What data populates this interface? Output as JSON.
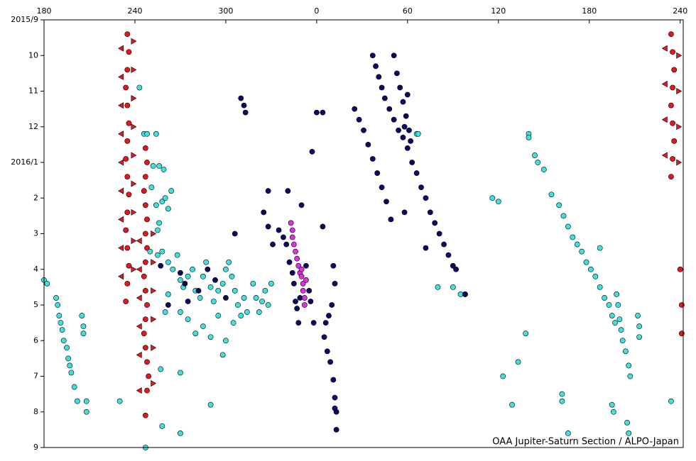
{
  "chart_data": {
    "type": "scatter",
    "annotation": "OAA Jupiter-Saturn Section / ALPO-Japan",
    "xlim": [
      180,
      602
    ],
    "ylim": [
      12,
      0
    ],
    "xticks": [
      180,
      240,
      300,
      {
        "value": 360,
        "label": "0"
      },
      {
        "value": 420,
        "label": "60"
      },
      {
        "value": 480,
        "label": "120"
      },
      {
        "value": 540,
        "label": "180"
      },
      {
        "value": 600,
        "label": "240"
      }
    ],
    "yticks": [
      {
        "value": 0,
        "label": "2015/9"
      },
      {
        "value": 1,
        "label": "10"
      },
      {
        "value": 2,
        "label": "11"
      },
      {
        "value": 3,
        "label": "12"
      },
      {
        "value": 4,
        "label": "2016/1"
      },
      {
        "value": 5,
        "label": "2"
      },
      {
        "value": 6,
        "label": "3"
      },
      {
        "value": 7,
        "label": "4"
      },
      {
        "value": 8,
        "label": "5"
      },
      {
        "value": 9,
        "label": "6"
      },
      {
        "value": 10,
        "label": "7"
      },
      {
        "value": 11,
        "label": "8"
      },
      {
        "value": 12,
        "label": "9"
      }
    ],
    "series": [
      {
        "color": "#e8141e",
        "marker": "circle",
        "x": [
          235,
          236,
          235,
          234,
          235,
          236,
          235,
          234,
          235,
          236,
          235,
          234,
          235,
          236,
          235,
          234,
          247,
          248,
          247,
          246,
          247,
          248,
          247,
          248,
          247,
          246,
          247,
          248,
          247,
          246,
          247,
          248,
          249,
          248,
          247,
          594,
          595,
          596,
          595,
          594,
          595,
          596,
          595,
          594,
          600,
          601,
          601
        ],
        "values": [
          0.4,
          0.9,
          1.4,
          1.9,
          2.4,
          2.9,
          3.4,
          3.9,
          4.4,
          4.9,
          5.4,
          5.9,
          6.4,
          6.9,
          7.4,
          7.9,
          3.6,
          4.0,
          4.4,
          4.8,
          5.2,
          5.6,
          6.0,
          6.4,
          6.8,
          7.2,
          7.6,
          8.0,
          8.4,
          8.8,
          9.2,
          9.6,
          10.0,
          10.4,
          11.1,
          0.4,
          0.9,
          1.4,
          1.9,
          2.4,
          2.9,
          3.4,
          3.9,
          4.4,
          7.0,
          8.0,
          8.8
        ]
      },
      {
        "color": "#e8141e",
        "marker": "tri-left",
        "x": [
          231,
          231,
          231,
          231,
          231,
          231,
          231,
          231,
          231,
          243,
          243,
          243,
          243,
          243,
          243,
          590,
          590,
          590,
          590
        ],
        "values": [
          0.8,
          1.6,
          2.4,
          3.2,
          4.0,
          4.8,
          5.6,
          6.4,
          7.2,
          6.2,
          7.0,
          7.8,
          8.6,
          9.4,
          10.4,
          0.8,
          1.8,
          2.8,
          3.8
        ]
      },
      {
        "color": "#e8141e",
        "marker": "tri-right",
        "x": [
          239,
          239,
          239,
          239,
          239,
          239,
          239,
          239,
          239,
          252,
          252,
          252,
          252,
          252,
          252,
          599,
          599,
          599,
          599
        ],
        "values": [
          0.6,
          1.4,
          2.2,
          3.0,
          3.8,
          4.6,
          5.4,
          6.2,
          7.0,
          6.0,
          6.8,
          7.6,
          8.4,
          9.2,
          10.2,
          1.0,
          2.0,
          3.0,
          4.0
        ]
      },
      {
        "color": "#40e0e0",
        "marker": "circle",
        "x": [
          180,
          182,
          188,
          189,
          190,
          191,
          192,
          193,
          195,
          196,
          197,
          198,
          205,
          206,
          206,
          200,
          202,
          208,
          208,
          230,
          243,
          246,
          248,
          254,
          252,
          256,
          259,
          251,
          254,
          256,
          258,
          260,
          255,
          262,
          264,
          250,
          255,
          258,
          262,
          265,
          268,
          270,
          272,
          275,
          278,
          280,
          283,
          285,
          287,
          290,
          292,
          295,
          298,
          300,
          302,
          304,
          306,
          308,
          310,
          312,
          314,
          318,
          320,
          322,
          324,
          326,
          328,
          330,
          270,
          275,
          280,
          285,
          290,
          295,
          300,
          305,
          298,
          260,
          262,
          247,
          258,
          270,
          290,
          257,
          270,
          440,
          450,
          455,
          458,
          476,
          480,
          500,
          500,
          504,
          506,
          510,
          515,
          520,
          523,
          526,
          529,
          532,
          535,
          538,
          541,
          544,
          547,
          550,
          553,
          555,
          557,
          547,
          558,
          559,
          560,
          561,
          562,
          564,
          566,
          567,
          572,
          573,
          573,
          555,
          556,
          565,
          566,
          483,
          489,
          493,
          498,
          522,
          522,
          526,
          594,
          426,
          427
        ],
        "values": [
          7.3,
          7.4,
          7.8,
          8.0,
          8.3,
          8.5,
          8.7,
          9.0,
          9.2,
          9.5,
          9.7,
          9.9,
          8.3,
          8.6,
          8.8,
          10.3,
          10.7,
          11.0,
          10.7,
          10.7,
          1.9,
          3.2,
          3.2,
          3.2,
          4.1,
          4.1,
          4.2,
          4.7,
          5.2,
          5.7,
          5.1,
          5.0,
          5.9,
          5.3,
          4.8,
          6.5,
          6.6,
          6.5,
          6.8,
          7.0,
          6.6,
          7.3,
          7.5,
          7.2,
          7.0,
          7.6,
          7.8,
          7.2,
          6.8,
          7.5,
          7.9,
          7.6,
          7.4,
          7.0,
          6.8,
          7.2,
          7.6,
          8.0,
          8.3,
          7.8,
          8.2,
          7.4,
          7.8,
          8.2,
          7.9,
          7.6,
          8.0,
          7.4,
          8.2,
          8.4,
          8.8,
          8.6,
          8.9,
          8.3,
          9.0,
          8.5,
          9.4,
          8.2,
          7.7,
          12.0,
          11.4,
          11.6,
          10.8,
          9.8,
          9.9,
          7.5,
          7.5,
          7.7,
          7.7,
          5.0,
          5.1,
          3.2,
          3.3,
          3.8,
          4.0,
          4.2,
          4.9,
          5.2,
          5.5,
          5.8,
          6.1,
          6.3,
          6.5,
          6.8,
          7.0,
          7.2,
          7.5,
          7.8,
          8.0,
          8.3,
          8.5,
          6.4,
          7.7,
          8.0,
          8.4,
          8.7,
          9.0,
          9.3,
          9.7,
          10.0,
          8.3,
          8.6,
          8.9,
          10.8,
          11.0,
          11.3,
          11.6,
          10.0,
          10.8,
          9.6,
          8.8,
          10.7,
          10.5,
          11.6,
          10.7,
          3.2,
          3.2
        ]
      },
      {
        "color": "#0a0a64",
        "marker": "circle",
        "x": [
          310,
          312,
          313,
          306,
          328,
          331,
          325,
          328,
          335,
          338,
          340,
          342,
          344,
          345,
          346,
          347,
          348,
          349,
          353,
          355,
          356,
          358,
          341,
          350,
          357,
          364,
          364,
          371,
          372,
          370,
          368,
          366,
          365,
          367,
          369,
          371,
          372,
          373,
          373,
          372,
          360,
          270,
          273,
          275,
          282,
          288,
          293,
          300,
          257,
          262,
          385,
          388,
          391,
          394,
          397,
          400,
          403,
          406,
          409,
          397,
          399,
          401,
          403,
          405,
          408,
          411,
          414,
          417,
          420,
          423,
          426,
          429,
          432,
          435,
          438,
          441,
          444,
          447,
          450,
          452,
          411,
          413,
          415,
          417,
          419,
          421,
          422,
          418,
          420,
          418,
          432,
          458
        ],
        "values": [
          2.2,
          2.4,
          2.6,
          6.0,
          4.8,
          6.3,
          5.4,
          5.8,
          5.9,
          6.1,
          6.3,
          6.8,
          7.1,
          7.4,
          7.9,
          8.1,
          8.5,
          7.8,
          6.9,
          7.6,
          7.9,
          8.5,
          4.8,
          5.2,
          3.7,
          2.6,
          5.8,
          6.9,
          7.4,
          8.0,
          8.3,
          8.5,
          8.9,
          9.3,
          9.6,
          10.1,
          10.6,
          11.0,
          11.5,
          10.9,
          2.6,
          7.1,
          7.4,
          7.9,
          7.6,
          7.0,
          7.3,
          7.8,
          6.9,
          8.0,
          2.5,
          2.8,
          3.1,
          3.5,
          3.9,
          4.3,
          4.7,
          5.1,
          5.6,
          1.0,
          1.3,
          1.6,
          1.9,
          2.2,
          2.5,
          2.8,
          3.1,
          3.3,
          3.6,
          4.0,
          4.3,
          4.7,
          5.0,
          5.4,
          5.7,
          6.0,
          6.3,
          6.6,
          6.9,
          7.0,
          1.0,
          1.5,
          1.9,
          2.3,
          2.7,
          3.1,
          3.4,
          3.0,
          2.1,
          5.4,
          6.4,
          7.7
        ]
      },
      {
        "color": "#e030e0",
        "marker": "circle",
        "x": [
          343,
          344,
          344,
          345,
          346,
          347,
          348,
          349,
          350,
          351,
          351,
          352,
          352,
          350,
          353
        ],
        "values": [
          5.7,
          5.9,
          6.1,
          6.3,
          6.5,
          6.7,
          6.9,
          7.1,
          7.2,
          7.4,
          7.6,
          7.8,
          8.0,
          7.0,
          7.3
        ]
      }
    ]
  }
}
